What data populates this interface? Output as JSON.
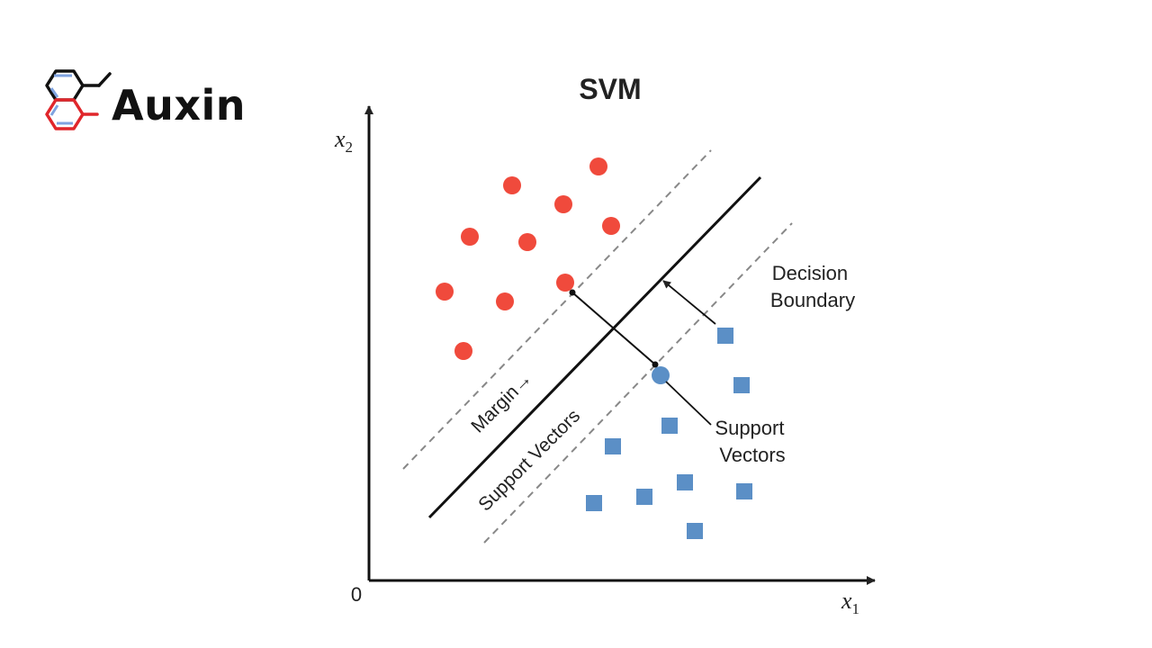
{
  "logo": {
    "text": "Auxin",
    "icon": "molecule-icon",
    "colors": {
      "upper_ring": "#111111",
      "lower_ring": "#e0262b",
      "inner_bonds": "#7fa3e0"
    }
  },
  "diagram": {
    "title": "SVM",
    "axis": {
      "x_label": "x",
      "x_subscript": "1",
      "y_label": "x",
      "y_subscript": "2",
      "origin": "0"
    },
    "labels": {
      "margin": "Margin",
      "margin_arrow": "→",
      "support_vectors_diagonal": "Support Vectors",
      "decision_boundary_line1": "Decision",
      "decision_boundary_line2": "Boundary",
      "support_vectors_callout_line1": "Support",
      "support_vectors_callout_line2": "Vectors"
    },
    "colors": {
      "class_a": "#f04a3c",
      "class_b": "#5b8fc6",
      "boundary": "#111111",
      "margin_lines": "#888888"
    }
  }
}
